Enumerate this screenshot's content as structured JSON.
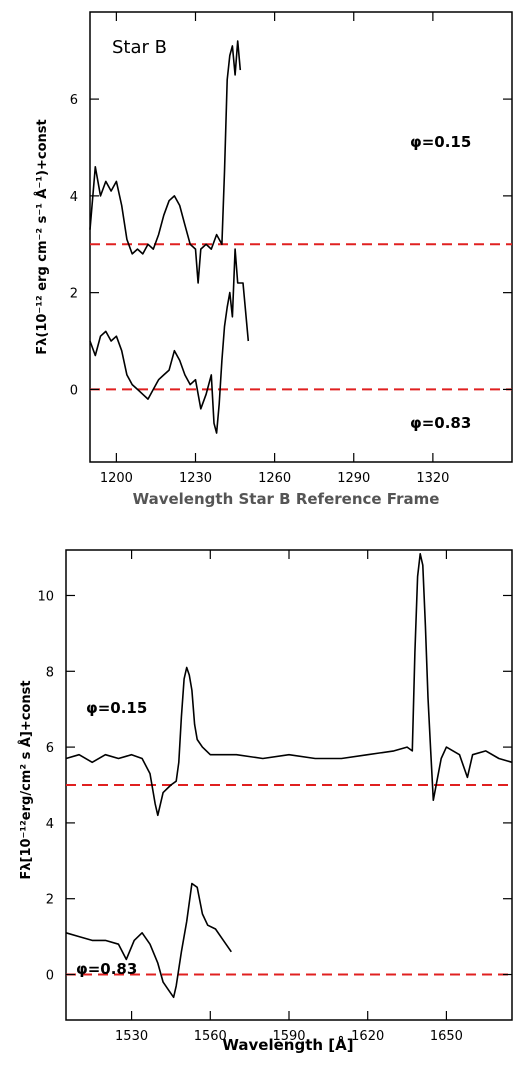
{
  "chart_data": [
    {
      "type": "line",
      "title": "Star B",
      "xlabel": "Wavelength Star B Reference Frame",
      "ylabel": "Fλ(10⁻¹² erg cm⁻² s⁻¹ Å⁻¹)+const",
      "xlim": [
        1190,
        1350
      ],
      "ylim": [
        -1.5,
        7.8
      ],
      "xticks": [
        1200,
        1230,
        1260,
        1290,
        1320
      ],
      "yticks": [
        0,
        2,
        4,
        6
      ],
      "grid": false,
      "annotations": [
        "φ=0.15",
        "φ=0.83"
      ],
      "reference_lines": [
        3,
        0
      ],
      "reference_color": "#e02020",
      "series": [
        {
          "label": "φ=0.15",
          "x": [
            1190,
            1192,
            1194,
            1196,
            1198,
            1200,
            1202,
            1204,
            1206,
            1208,
            1210,
            1212,
            1214,
            1216,
            1218,
            1220,
            1222,
            1224,
            1226,
            1228,
            1230,
            1231,
            1232,
            1234,
            1236,
            1238,
            1240,
            1241,
            1242,
            1243,
            1244,
            1245,
            1246,
            1247
          ],
          "y": [
            3.3,
            4.6,
            4.0,
            4.3,
            4.1,
            4.3,
            3.8,
            3.1,
            2.8,
            2.9,
            2.8,
            3.0,
            2.9,
            3.2,
            3.6,
            3.9,
            4.0,
            3.8,
            3.4,
            3.0,
            2.9,
            2.2,
            2.9,
            3.0,
            2.9,
            3.2,
            3.0,
            4.5,
            6.4,
            6.9,
            7.1,
            6.5,
            7.2,
            6.6
          ]
        },
        {
          "label": "φ=0.83",
          "x": [
            1190,
            1192,
            1194,
            1196,
            1198,
            1200,
            1202,
            1204,
            1206,
            1208,
            1210,
            1212,
            1214,
            1216,
            1218,
            1220,
            1222,
            1224,
            1226,
            1228,
            1230,
            1232,
            1234,
            1236,
            1237,
            1238,
            1239,
            1240,
            1241,
            1242,
            1243,
            1244,
            1245,
            1246,
            1248,
            1250
          ],
          "y": [
            1.0,
            0.7,
            1.1,
            1.2,
            1.0,
            1.1,
            0.8,
            0.3,
            0.1,
            0.0,
            -0.1,
            -0.2,
            0.0,
            0.2,
            0.3,
            0.4,
            0.8,
            0.6,
            0.3,
            0.1,
            0.2,
            -0.4,
            -0.1,
            0.3,
            -0.7,
            -0.9,
            -0.3,
            0.6,
            1.3,
            1.7,
            2.0,
            1.5,
            2.9,
            2.2,
            2.2,
            1.0
          ]
        }
      ]
    },
    {
      "type": "line",
      "title": "",
      "xlabel": "Wavelength [Å]",
      "ylabel": "Fλ[10⁻¹²erg/cm² s Å]+const",
      "xlim": [
        1505,
        1675
      ],
      "ylim": [
        -1.2,
        11.2
      ],
      "xticks": [
        1530,
        1560,
        1590,
        1620,
        1650
      ],
      "yticks": [
        0,
        2,
        4,
        6,
        8,
        10
      ],
      "grid": false,
      "annotations": [
        "φ=0.15",
        "φ=0.83"
      ],
      "reference_lines": [
        5,
        0
      ],
      "reference_color": "#e02020",
      "series": [
        {
          "label": "φ=0.15",
          "x": [
            1505,
            1510,
            1515,
            1520,
            1525,
            1530,
            1534,
            1537,
            1539,
            1540,
            1542,
            1545,
            1547,
            1548,
            1549,
            1550,
            1551,
            1552,
            1553,
            1554,
            1555,
            1557,
            1560,
            1570,
            1580,
            1590,
            1600,
            1610,
            1620,
            1630,
            1635,
            1637,
            1638,
            1639,
            1640,
            1641,
            1642,
            1643,
            1644,
            1645,
            1648,
            1650,
            1655,
            1658,
            1660,
            1665,
            1670,
            1675
          ],
          "y": [
            5.7,
            5.8,
            5.6,
            5.8,
            5.7,
            5.8,
            5.7,
            5.3,
            4.5,
            4.2,
            4.8,
            5.0,
            5.1,
            5.6,
            6.8,
            7.8,
            8.1,
            7.9,
            7.5,
            6.6,
            6.2,
            6.0,
            5.8,
            5.8,
            5.7,
            5.8,
            5.7,
            5.7,
            5.8,
            5.9,
            6.0,
            5.9,
            8.5,
            10.5,
            11.1,
            10.8,
            9.2,
            7.3,
            5.9,
            4.6,
            5.7,
            6.0,
            5.8,
            5.2,
            5.8,
            5.9,
            5.7,
            5.6
          ]
        },
        {
          "label": "φ=0.83",
          "x": [
            1505,
            1510,
            1515,
            1520,
            1525,
            1528,
            1531,
            1534,
            1537,
            1540,
            1542,
            1544,
            1546,
            1547,
            1549,
            1551,
            1553,
            1555,
            1557,
            1559,
            1562,
            1565,
            1568
          ],
          "y": [
            1.1,
            1.0,
            0.9,
            0.9,
            0.8,
            0.4,
            0.9,
            1.1,
            0.8,
            0.3,
            -0.2,
            -0.4,
            -0.6,
            -0.3,
            0.6,
            1.4,
            2.4,
            2.3,
            1.6,
            1.3,
            1.2,
            0.9,
            0.6
          ]
        }
      ]
    }
  ]
}
